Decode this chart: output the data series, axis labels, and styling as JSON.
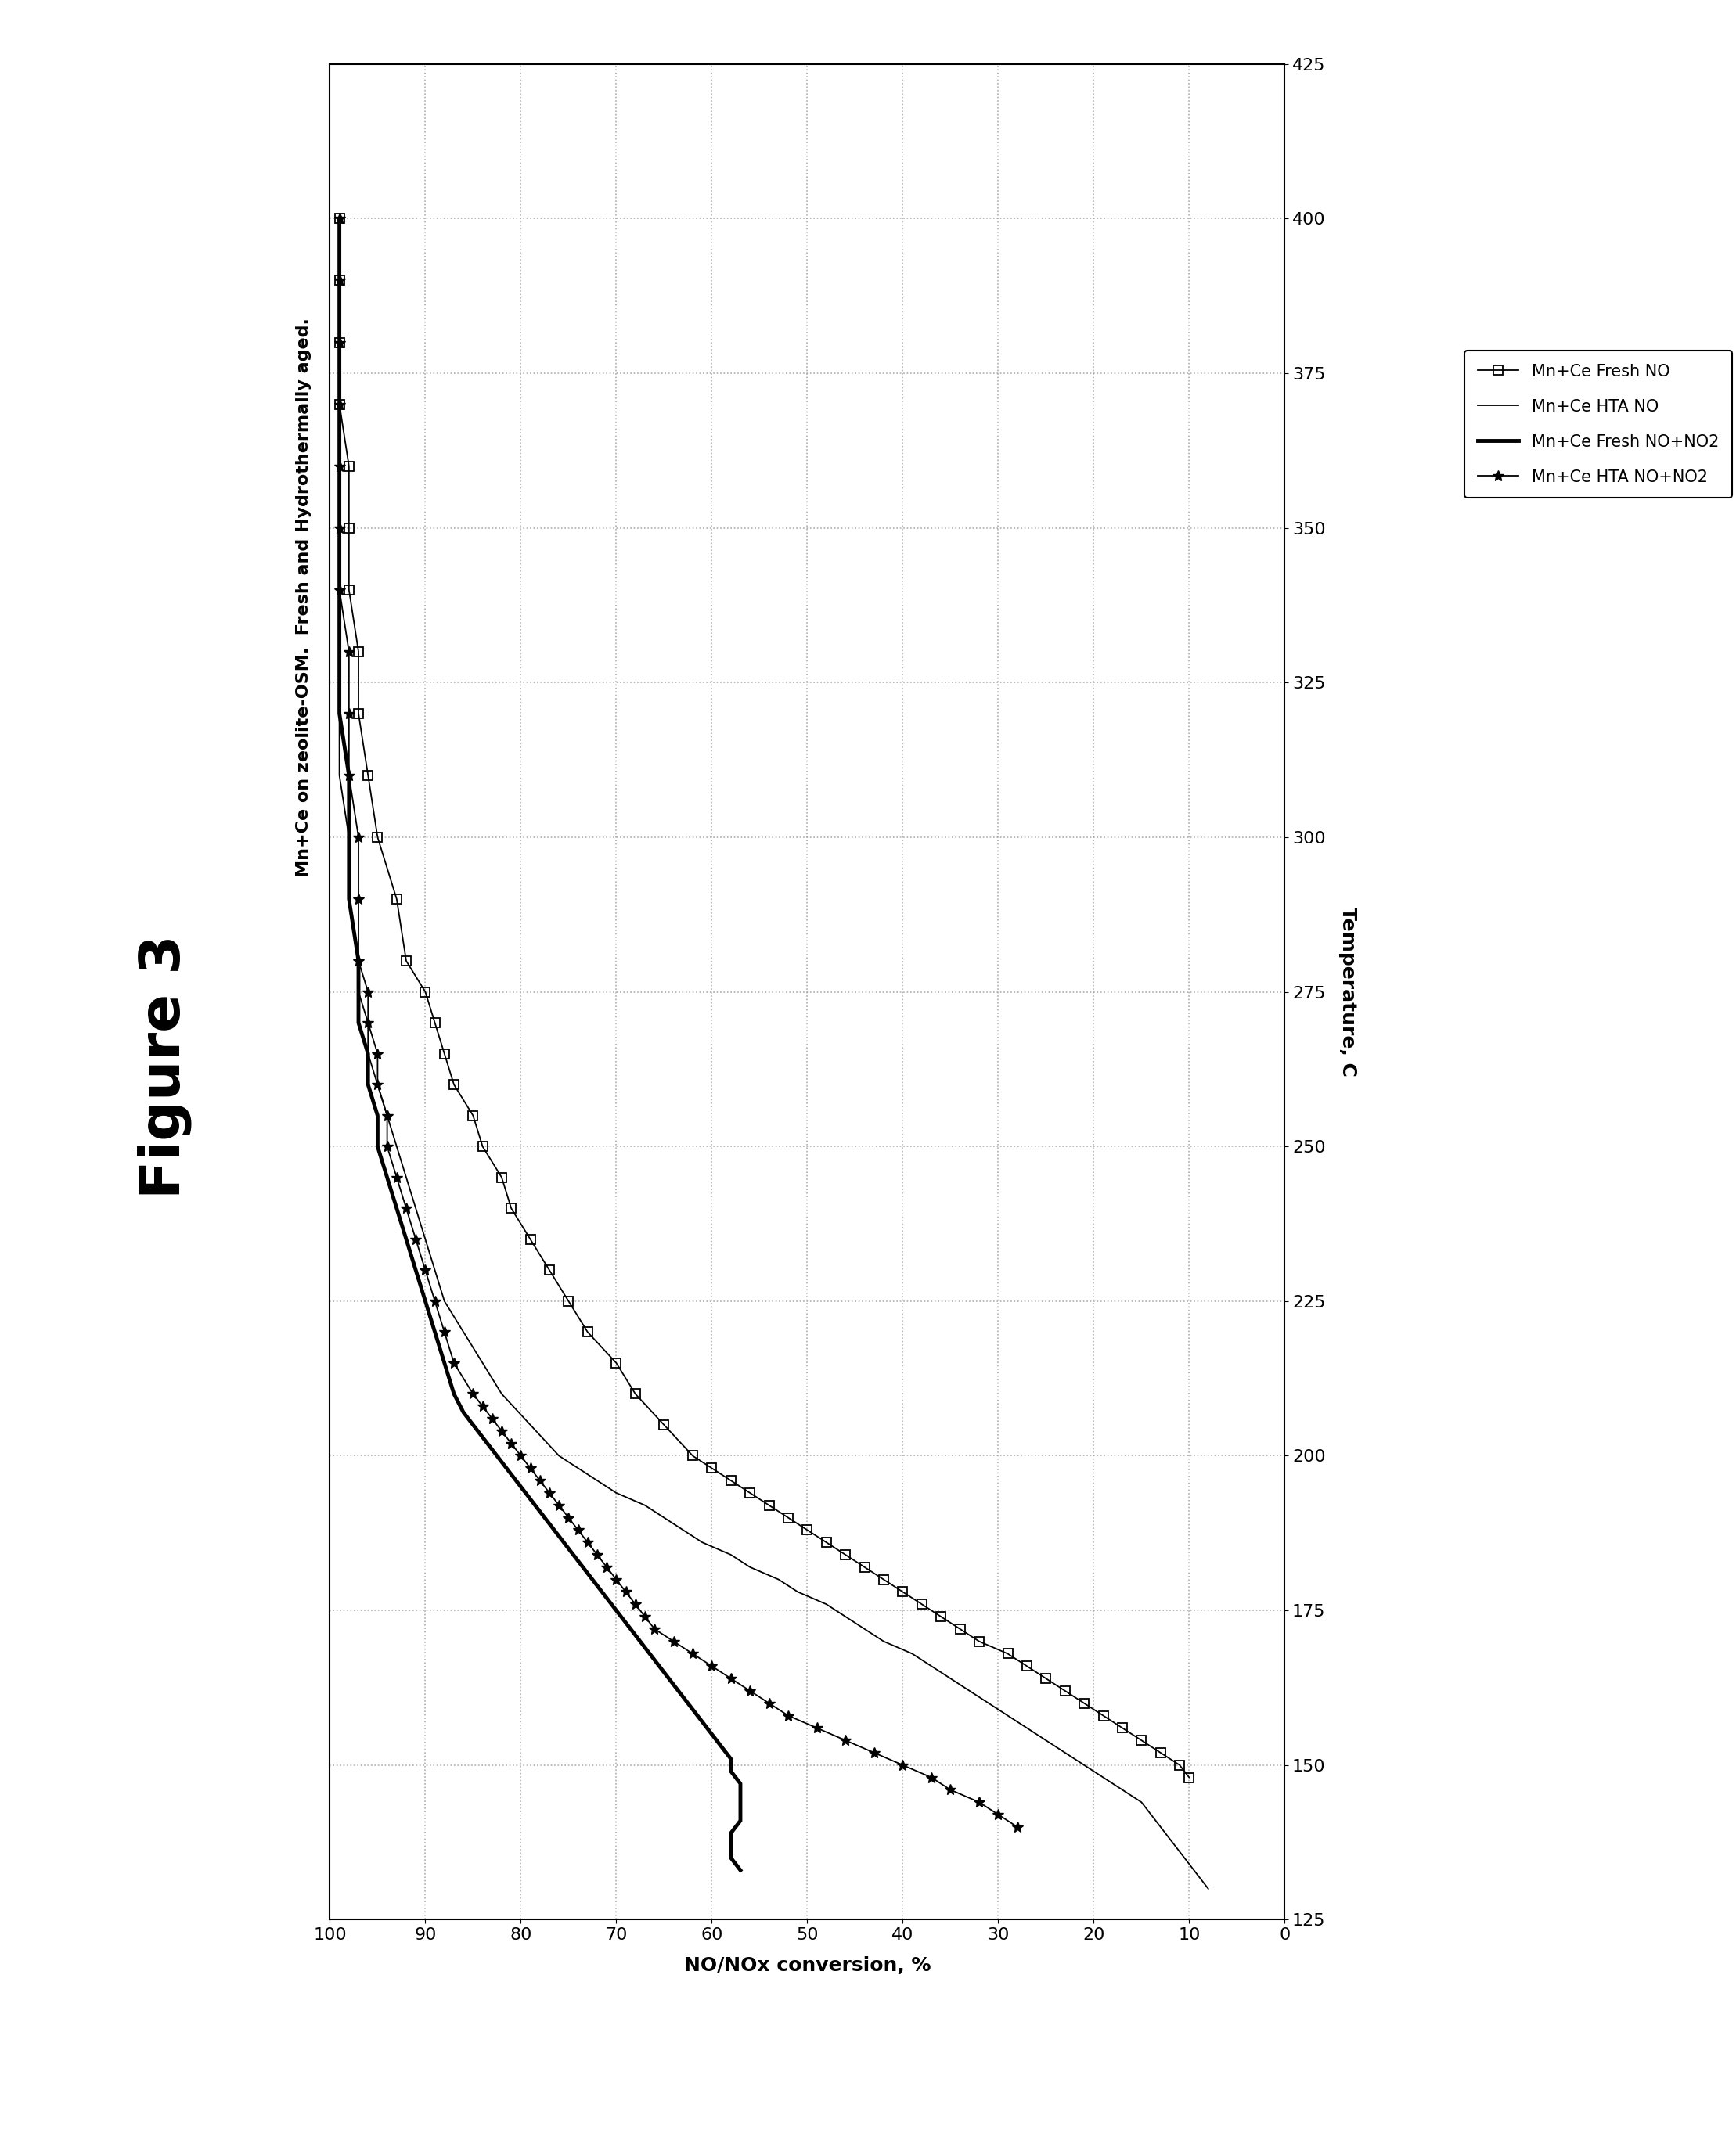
{
  "title_figure": "Figure 3",
  "subtitle": "Mn+Ce on zeolite-OSM.  Fresh and Hydrothermally aged.",
  "temp_label": "Temperature, C",
  "conv_label": "NO/NOx conversion, %",
  "temp_min": 125,
  "temp_max": 425,
  "conv_min": 0,
  "conv_max": 100,
  "temp_ticks": [
    125,
    150,
    175,
    200,
    225,
    250,
    275,
    300,
    325,
    350,
    375,
    400,
    425
  ],
  "conv_ticks": [
    0,
    10,
    20,
    30,
    40,
    50,
    60,
    70,
    80,
    90,
    100
  ],
  "background_color": "#ffffff",
  "grid_color": "#999999",
  "series": [
    {
      "label": "Mn+Ce Fresh NO",
      "color": "#000000",
      "linewidth": 1.3,
      "marker": "s",
      "markersize": 8,
      "markerfacecolor": "none",
      "markeredgewidth": 1.3,
      "temp": [
        148,
        150,
        152,
        154,
        156,
        158,
        160,
        162,
        164,
        166,
        168,
        170,
        172,
        174,
        176,
        178,
        180,
        182,
        184,
        186,
        188,
        190,
        192,
        194,
        196,
        198,
        200,
        205,
        210,
        215,
        220,
        225,
        230,
        235,
        240,
        245,
        250,
        255,
        260,
        265,
        270,
        275,
        280,
        290,
        300,
        310,
        320,
        330,
        340,
        350,
        360,
        370,
        380,
        390,
        400
      ],
      "conv": [
        10,
        11,
        13,
        15,
        17,
        19,
        21,
        23,
        25,
        27,
        29,
        32,
        34,
        36,
        38,
        40,
        42,
        44,
        46,
        48,
        50,
        52,
        54,
        56,
        58,
        60,
        62,
        65,
        68,
        70,
        73,
        75,
        77,
        79,
        81,
        82,
        84,
        85,
        87,
        88,
        89,
        90,
        92,
        93,
        95,
        96,
        97,
        97,
        98,
        98,
        98,
        99,
        99,
        99,
        99
      ]
    },
    {
      "label": "Mn+Ce HTA NO",
      "color": "#000000",
      "linewidth": 1.3,
      "marker": null,
      "temp": [
        130,
        132,
        134,
        136,
        138,
        140,
        142,
        144,
        146,
        148,
        150,
        152,
        154,
        156,
        158,
        160,
        162,
        164,
        166,
        168,
        170,
        172,
        174,
        176,
        178,
        180,
        182,
        184,
        186,
        188,
        190,
        192,
        194,
        196,
        198,
        200,
        205,
        210,
        215,
        220,
        225,
        230,
        235,
        240,
        245,
        250,
        255,
        260,
        265,
        270,
        275,
        280,
        290,
        300,
        310,
        320,
        330,
        340,
        350,
        360,
        370,
        380
      ],
      "conv": [
        8,
        9,
        10,
        11,
        12,
        13,
        14,
        15,
        17,
        19,
        21,
        23,
        25,
        27,
        29,
        31,
        33,
        35,
        37,
        39,
        42,
        44,
        46,
        48,
        51,
        53,
        56,
        58,
        61,
        63,
        65,
        67,
        70,
        72,
        74,
        76,
        79,
        82,
        84,
        86,
        88,
        89,
        90,
        91,
        92,
        93,
        94,
        95,
        96,
        96,
        97,
        97,
        98,
        98,
        99,
        99,
        99,
        99,
        99,
        99,
        99,
        99
      ]
    },
    {
      "label": "Mn+Ce Fresh NO+NO2",
      "color": "#000000",
      "linewidth": 3.5,
      "marker": null,
      "temp": [
        133,
        135,
        137,
        139,
        141,
        143,
        145,
        147,
        149,
        151,
        153,
        155,
        157,
        159,
        161,
        163,
        165,
        167,
        169,
        171,
        173,
        175,
        177,
        179,
        181,
        183,
        185,
        187,
        189,
        191,
        193,
        195,
        197,
        199,
        201,
        203,
        205,
        207,
        210,
        215,
        220,
        225,
        230,
        235,
        240,
        245,
        250,
        255,
        260,
        265,
        270,
        275,
        280,
        290,
        300,
        310,
        320,
        330,
        340,
        350,
        360,
        370,
        380,
        390,
        400
      ],
      "conv": [
        57,
        58,
        58,
        58,
        57,
        57,
        57,
        57,
        58,
        58,
        59,
        60,
        61,
        62,
        63,
        64,
        65,
        66,
        67,
        68,
        69,
        70,
        71,
        72,
        73,
        74,
        75,
        76,
        77,
        78,
        79,
        80,
        81,
        82,
        83,
        84,
        85,
        86,
        87,
        88,
        89,
        90,
        91,
        92,
        93,
        94,
        95,
        95,
        96,
        96,
        97,
        97,
        97,
        98,
        98,
        98,
        99,
        99,
        99,
        99,
        99,
        99,
        99,
        99,
        99
      ]
    },
    {
      "label": "Mn+Ce HTA NO+NO2",
      "color": "#000000",
      "linewidth": 1.3,
      "marker": "*",
      "markersize": 10,
      "markerfacecolor": "#000000",
      "markeredgewidth": 1.0,
      "temp": [
        140,
        142,
        144,
        146,
        148,
        150,
        152,
        154,
        156,
        158,
        160,
        162,
        164,
        166,
        168,
        170,
        172,
        174,
        176,
        178,
        180,
        182,
        184,
        186,
        188,
        190,
        192,
        194,
        196,
        198,
        200,
        202,
        204,
        206,
        208,
        210,
        215,
        220,
        225,
        230,
        235,
        240,
        245,
        250,
        255,
        260,
        265,
        270,
        275,
        280,
        290,
        300,
        310,
        320,
        330,
        340,
        350,
        360,
        370,
        380,
        390,
        400
      ],
      "conv": [
        28,
        30,
        32,
        35,
        37,
        40,
        43,
        46,
        49,
        52,
        54,
        56,
        58,
        60,
        62,
        64,
        66,
        67,
        68,
        69,
        70,
        71,
        72,
        73,
        74,
        75,
        76,
        77,
        78,
        79,
        80,
        81,
        82,
        83,
        84,
        85,
        87,
        88,
        89,
        90,
        91,
        92,
        93,
        94,
        94,
        95,
        95,
        96,
        96,
        97,
        97,
        97,
        98,
        98,
        98,
        99,
        99,
        99,
        99,
        99,
        99,
        99
      ]
    }
  ]
}
